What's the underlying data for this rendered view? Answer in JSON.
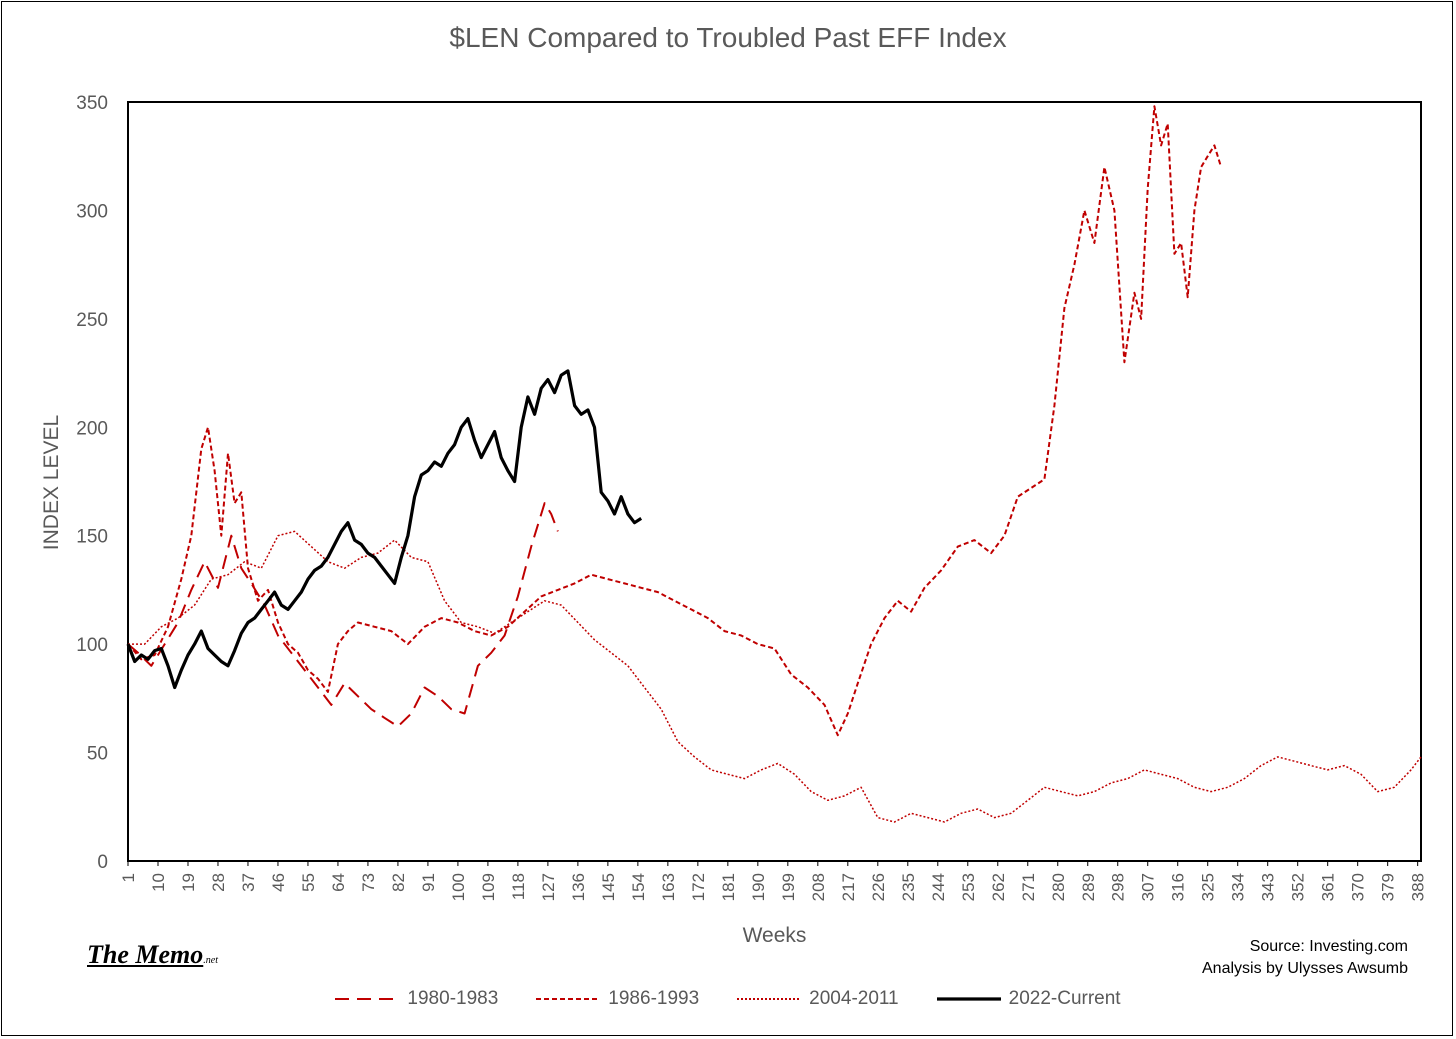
{
  "title": "$LEN Compared to Troubled Past EFF Index",
  "brand": {
    "name": "The Memo",
    "suffix": ".net"
  },
  "source": {
    "line1": "Source: Investing.com",
    "line2": "Analysis by Ulysses Awsumb"
  },
  "colors": {
    "red": "#c00000",
    "black": "#000000",
    "text": "#595959"
  },
  "chart_data": {
    "type": "line",
    "title": "$LEN Compared to Troubled Past EFF Index",
    "xlabel": "Weeks",
    "ylabel": "INDEX LEVEL",
    "xlim": [
      1,
      389
    ],
    "ylim": [
      0,
      350
    ],
    "y_ticks": [
      0,
      50,
      100,
      150,
      200,
      250,
      300,
      350
    ],
    "x_ticks": [
      1,
      10,
      19,
      28,
      37,
      46,
      55,
      64,
      73,
      82,
      91,
      100,
      109,
      118,
      127,
      136,
      145,
      154,
      163,
      172,
      181,
      190,
      199,
      208,
      217,
      226,
      235,
      244,
      253,
      262,
      271,
      280,
      289,
      298,
      307,
      316,
      325,
      334,
      343,
      352,
      361,
      370,
      379,
      388
    ],
    "grid": false,
    "legend": "bottom",
    "series": [
      {
        "name": "1980-1983",
        "style": "long-dash",
        "color": "#c00000",
        "x": [
          1,
          4,
          8,
          12,
          16,
          20,
          24,
          28,
          32,
          35,
          38,
          42,
          46,
          50,
          55,
          58,
          62,
          66,
          70,
          74,
          78,
          82,
          86,
          90,
          94,
          98,
          102,
          106,
          110,
          114,
          118,
          122,
          126,
          128,
          130
        ],
        "y": [
          100,
          96,
          90,
          100,
          110,
          125,
          138,
          126,
          150,
          135,
          128,
          118,
          104,
          96,
          86,
          80,
          72,
          82,
          76,
          70,
          66,
          62,
          68,
          80,
          76,
          70,
          68,
          90,
          96,
          104,
          122,
          145,
          165,
          160,
          152
        ]
      },
      {
        "name": "1986-1993",
        "style": "short-dash",
        "color": "#c00000",
        "x": [
          1,
          5,
          9,
          13,
          17,
          20,
          23,
          25,
          27,
          29,
          31,
          33,
          35,
          37,
          40,
          43,
          46,
          49,
          52,
          55,
          58,
          61,
          64,
          67,
          70,
          75,
          80,
          85,
          90,
          95,
          100,
          105,
          110,
          115,
          120,
          125,
          130,
          135,
          140,
          145,
          150,
          155,
          160,
          165,
          170,
          175,
          180,
          185,
          190,
          195,
          200,
          205,
          210,
          214,
          217,
          220,
          224,
          228,
          232,
          236,
          240,
          245,
          250,
          255,
          260,
          264,
          268,
          272,
          276,
          279,
          282,
          285,
          288,
          291,
          294,
          297,
          300,
          303,
          305,
          307,
          309,
          311,
          313,
          315,
          317,
          319,
          321,
          323,
          325,
          327,
          329
        ],
        "y": [
          100,
          93,
          95,
          108,
          130,
          150,
          190,
          200,
          180,
          150,
          188,
          165,
          170,
          135,
          120,
          125,
          110,
          100,
          96,
          88,
          84,
          78,
          100,
          106,
          110,
          108,
          106,
          100,
          108,
          112,
          110,
          106,
          104,
          108,
          115,
          122,
          125,
          128,
          132,
          130,
          128,
          126,
          124,
          120,
          116,
          112,
          106,
          104,
          100,
          98,
          86,
          80,
          72,
          58,
          68,
          82,
          100,
          112,
          120,
          115,
          126,
          134,
          145,
          148,
          142,
          150,
          168,
          172,
          176,
          210,
          255,
          275,
          300,
          285,
          320,
          300,
          230,
          262,
          250,
          310,
          348,
          330,
          340,
          280,
          285,
          260,
          300,
          320,
          325,
          330,
          320
        ]
      },
      {
        "name": "2004-2011",
        "style": "dotted",
        "color": "#c00000",
        "x": [
          1,
          6,
          11,
          16,
          21,
          26,
          31,
          36,
          41,
          46,
          51,
          56,
          61,
          66,
          71,
          76,
          81,
          86,
          91,
          96,
          101,
          106,
          111,
          116,
          121,
          126,
          131,
          136,
          141,
          146,
          151,
          156,
          161,
          166,
          171,
          176,
          181,
          186,
          191,
          196,
          201,
          206,
          211,
          216,
          221,
          226,
          231,
          236,
          241,
          246,
          251,
          256,
          261,
          266,
          271,
          276,
          281,
          286,
          291,
          296,
          301,
          306,
          311,
          316,
          321,
          326,
          331,
          336,
          341,
          346,
          351,
          356,
          361,
          366,
          371,
          376,
          381,
          386,
          389
        ],
        "y": [
          100,
          100,
          108,
          112,
          118,
          130,
          132,
          138,
          135,
          150,
          152,
          145,
          138,
          135,
          140,
          142,
          148,
          140,
          138,
          120,
          110,
          108,
          105,
          110,
          115,
          120,
          118,
          110,
          102,
          96,
          90,
          80,
          70,
          55,
          48,
          42,
          40,
          38,
          42,
          45,
          40,
          32,
          28,
          30,
          34,
          20,
          18,
          22,
          20,
          18,
          22,
          24,
          20,
          22,
          28,
          34,
          32,
          30,
          32,
          36,
          38,
          42,
          40,
          38,
          34,
          32,
          34,
          38,
          44,
          48,
          46,
          44,
          42,
          44,
          40,
          32,
          34,
          42,
          48
        ]
      },
      {
        "name": "2022-Current",
        "style": "solid",
        "color": "#000000",
        "x": [
          1,
          3,
          5,
          7,
          9,
          11,
          13,
          15,
          17,
          19,
          21,
          23,
          25,
          27,
          29,
          31,
          33,
          35,
          37,
          39,
          41,
          43,
          45,
          47,
          49,
          51,
          53,
          55,
          57,
          59,
          61,
          63,
          65,
          67,
          69,
          71,
          73,
          75,
          77,
          79,
          81,
          83,
          85,
          87,
          89,
          91,
          93,
          95,
          97,
          99,
          101,
          103,
          105,
          107,
          109,
          111,
          113,
          115,
          117,
          119,
          121,
          123,
          125,
          127,
          129,
          131,
          133,
          135,
          137,
          139,
          141,
          143,
          145,
          147,
          149,
          151,
          153,
          155
        ],
        "y": [
          100,
          92,
          95,
          93,
          97,
          98,
          90,
          80,
          88,
          95,
          100,
          106,
          98,
          95,
          92,
          90,
          97,
          105,
          110,
          112,
          116,
          120,
          124,
          118,
          116,
          120,
          124,
          130,
          134,
          136,
          140,
          146,
          152,
          156,
          148,
          146,
          142,
          140,
          136,
          132,
          128,
          140,
          150,
          168,
          178,
          180,
          184,
          182,
          188,
          192,
          200,
          204,
          194,
          186,
          192,
          198,
          186,
          180,
          175,
          200,
          214,
          206,
          218,
          222,
          216,
          224,
          226,
          210,
          206,
          208,
          200,
          170,
          166,
          160,
          168,
          160,
          156,
          158
        ]
      }
    ]
  }
}
